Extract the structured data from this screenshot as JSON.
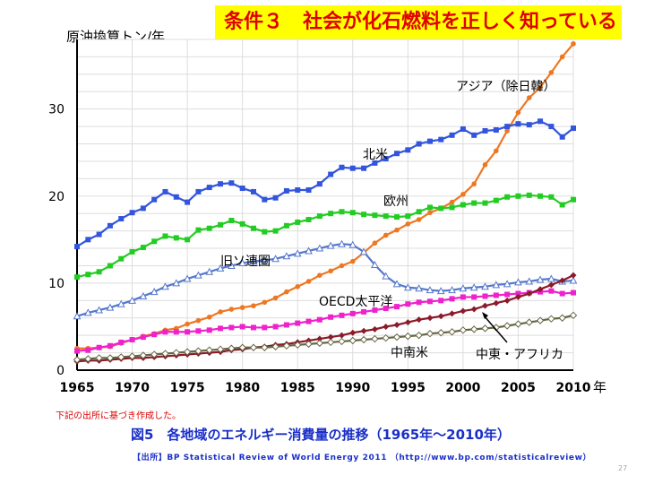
{
  "banner": {
    "text": "条件３　社会が化石燃料を正しく知っている"
  },
  "note": "下記の出所に基づき作成した。",
  "caption": "図5　各地域のエネルギー消費量の推移（1965年～2010年）",
  "source": "【出所】BP Statistical Review of World Energy 2011 （http://www.bp.com/statisticalreview）",
  "page_number": "27",
  "chart_data": {
    "type": "line",
    "ylabel": "原油換算トン/年",
    "xlabel": "年",
    "xlim": [
      1965,
      2010
    ],
    "ylim": [
      0,
      38
    ],
    "x_ticks": [
      1965,
      1970,
      1975,
      1980,
      1985,
      1990,
      1995,
      2000,
      2005,
      2010
    ],
    "y_ticks": [
      0,
      10,
      20,
      30
    ],
    "grid": true,
    "x": [
      1965,
      1966,
      1967,
      1968,
      1969,
      1970,
      1971,
      1972,
      1973,
      1974,
      1975,
      1976,
      1977,
      1978,
      1979,
      1980,
      1981,
      1982,
      1983,
      1984,
      1985,
      1986,
      1987,
      1988,
      1989,
      1990,
      1991,
      1992,
      1993,
      1994,
      1995,
      1996,
      1997,
      1998,
      1999,
      2000,
      2001,
      2002,
      2003,
      2004,
      2005,
      2006,
      2007,
      2008,
      2009,
      2010
    ],
    "series": [
      {
        "name": "アジア（除日韓）",
        "color": "#ee7722",
        "marker": "circle",
        "values": [
          2.5,
          2.5,
          2.6,
          2.7,
          3.1,
          3.5,
          3.9,
          4.2,
          4.6,
          4.8,
          5.3,
          5.7,
          6.1,
          6.7,
          7.0,
          7.2,
          7.4,
          7.8,
          8.3,
          9.0,
          9.6,
          10.2,
          10.9,
          11.4,
          12.0,
          12.5,
          13.5,
          14.6,
          15.5,
          16.1,
          16.8,
          17.3,
          18.1,
          18.6,
          19.3,
          20.2,
          21.4,
          23.6,
          25.2,
          27.5,
          29.6,
          31.3,
          32.5,
          34.2,
          36.0,
          37.5
        ]
      },
      {
        "name": "北米",
        "color": "#3355dd",
        "marker": "square",
        "values": [
          14.2,
          15.0,
          15.6,
          16.6,
          17.4,
          18.1,
          18.6,
          19.6,
          20.5,
          19.9,
          19.3,
          20.5,
          21.0,
          21.4,
          21.5,
          20.9,
          20.5,
          19.6,
          19.8,
          20.6,
          20.7,
          20.7,
          21.4,
          22.5,
          23.3,
          23.2,
          23.2,
          23.8,
          24.3,
          24.9,
          25.3,
          26.0,
          26.3,
          26.5,
          27.0,
          27.7,
          27.0,
          27.5,
          27.6,
          28.0,
          28.3,
          28.2,
          28.6,
          28.0,
          26.8,
          27.8
        ]
      },
      {
        "name": "欧州",
        "color": "#22cc22",
        "marker": "square",
        "values": [
          10.7,
          11.0,
          11.3,
          12.0,
          12.8,
          13.6,
          14.1,
          14.8,
          15.4,
          15.2,
          15.0,
          16.1,
          16.3,
          16.7,
          17.2,
          16.8,
          16.3,
          15.9,
          16.0,
          16.6,
          17.0,
          17.3,
          17.7,
          18.0,
          18.2,
          18.1,
          17.9,
          17.8,
          17.7,
          17.6,
          17.7,
          18.2,
          18.7,
          18.6,
          18.7,
          19.0,
          19.2,
          19.2,
          19.5,
          19.9,
          20.0,
          20.1,
          20.0,
          19.9,
          19.0,
          19.6
        ]
      },
      {
        "name": "旧ソ連圏",
        "color": "#5577cc",
        "marker": "triangle",
        "values": [
          6.2,
          6.6,
          6.9,
          7.2,
          7.6,
          8.0,
          8.5,
          9.0,
          9.6,
          10.0,
          10.5,
          10.9,
          11.3,
          11.7,
          12.0,
          12.3,
          12.5,
          12.6,
          12.8,
          13.1,
          13.4,
          13.7,
          14.0,
          14.3,
          14.5,
          14.4,
          13.6,
          12.1,
          10.8,
          9.9,
          9.5,
          9.4,
          9.2,
          9.1,
          9.2,
          9.4,
          9.5,
          9.6,
          9.8,
          9.9,
          10.1,
          10.2,
          10.4,
          10.5,
          10.2,
          10.3
        ]
      },
      {
        "name": "OECD太平洋",
        "color": "#ee22cc",
        "marker": "square",
        "values": [
          2.2,
          2.3,
          2.6,
          2.8,
          3.2,
          3.5,
          3.8,
          4.1,
          4.4,
          4.4,
          4.4,
          4.5,
          4.6,
          4.8,
          4.9,
          5.0,
          4.9,
          4.9,
          5.0,
          5.2,
          5.4,
          5.6,
          5.8,
          6.1,
          6.3,
          6.5,
          6.7,
          6.9,
          7.1,
          7.3,
          7.6,
          7.8,
          7.9,
          8.0,
          8.2,
          8.4,
          8.4,
          8.5,
          8.6,
          8.7,
          8.8,
          8.9,
          9.0,
          9.1,
          8.8,
          8.9
        ]
      },
      {
        "name": "中東・アフリカ",
        "color": "#8b1a2a",
        "marker": "diamond",
        "values": [
          1.0,
          1.1,
          1.1,
          1.2,
          1.3,
          1.4,
          1.4,
          1.5,
          1.6,
          1.7,
          1.8,
          1.9,
          2.0,
          2.1,
          2.3,
          2.4,
          2.6,
          2.7,
          2.9,
          3.0,
          3.2,
          3.4,
          3.6,
          3.8,
          4.0,
          4.3,
          4.5,
          4.7,
          5.0,
          5.2,
          5.5,
          5.8,
          6.0,
          6.2,
          6.5,
          6.8,
          7.0,
          7.4,
          7.7,
          8.0,
          8.4,
          8.8,
          9.3,
          9.8,
          10.3,
          10.9
        ]
      },
      {
        "name": "中南米",
        "color": "#666644",
        "marker": "open-diamond",
        "values": [
          1.2,
          1.3,
          1.4,
          1.4,
          1.5,
          1.6,
          1.7,
          1.8,
          1.9,
          2.0,
          2.1,
          2.2,
          2.3,
          2.4,
          2.5,
          2.6,
          2.6,
          2.6,
          2.7,
          2.8,
          2.9,
          3.0,
          3.1,
          3.2,
          3.3,
          3.4,
          3.5,
          3.6,
          3.7,
          3.8,
          3.9,
          4.0,
          4.2,
          4.3,
          4.4,
          4.6,
          4.7,
          4.8,
          4.9,
          5.1,
          5.3,
          5.5,
          5.7,
          5.9,
          6.0,
          6.3
        ]
      }
    ],
    "annotations": [
      {
        "text": "アジア（除日韓）",
        "series": "アジア（除日韓）"
      },
      {
        "text": "北米",
        "series": "北米"
      },
      {
        "text": "欧州",
        "series": "欧州"
      },
      {
        "text": "旧ソ連圏",
        "series": "旧ソ連圏"
      },
      {
        "text": "OECD太平洋",
        "series": "OECD太平洋"
      },
      {
        "text": "中南米",
        "series": "中南米"
      },
      {
        "text": "中東・アフリカ",
        "series": "中東・アフリカ"
      }
    ]
  }
}
